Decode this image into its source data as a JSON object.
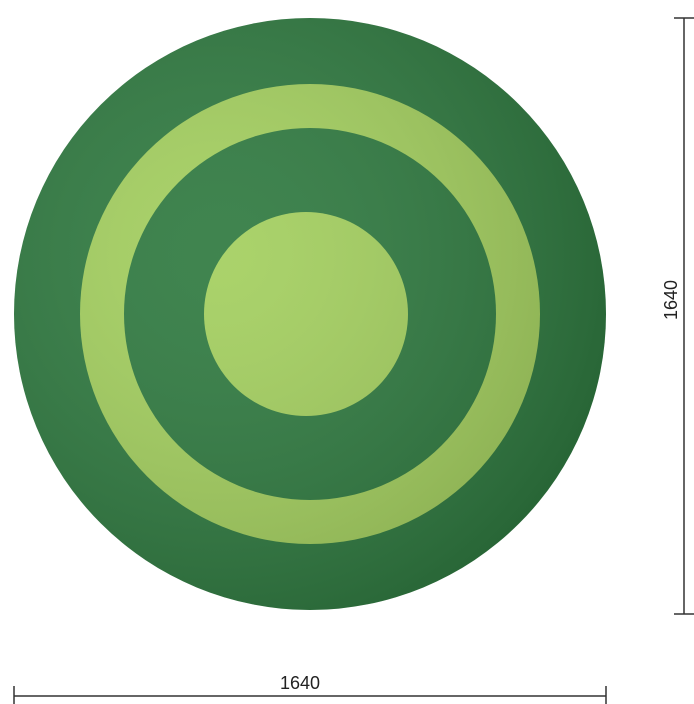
{
  "dimensions": {
    "width": "1640",
    "height": "1640"
  }
}
